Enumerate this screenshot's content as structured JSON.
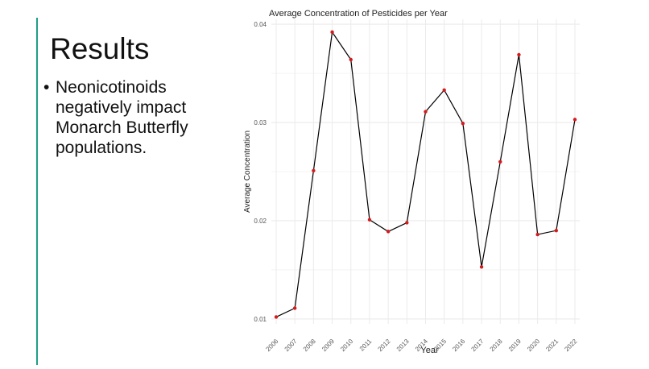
{
  "slide": {
    "title": "Results",
    "bullets": [
      "Neonicotinoids negatively impact Monarch Butterfly populations."
    ],
    "accent_color": "#1f9e89"
  },
  "chart_data": {
    "type": "line",
    "title": "Average Concentration of Pesticides per Year",
    "xlabel": "Year",
    "ylabel": "Average Concentration",
    "x": [
      "2006",
      "2007",
      "2008",
      "2009",
      "2010",
      "2011",
      "2012",
      "2013",
      "2014",
      "2015",
      "2016",
      "2017",
      "2018",
      "2019",
      "2020",
      "2021",
      "2022"
    ],
    "series": [
      {
        "values": [
          0.0102,
          0.0111,
          0.0251,
          0.0392,
          0.0364,
          0.0201,
          0.0189,
          0.0198,
          0.0311,
          0.0333,
          0.0299,
          0.0153,
          0.026,
          0.0369,
          0.0186,
          0.019,
          0.0303
        ],
        "line_color": "#000000",
        "point_color": "#d7191c"
      }
    ],
    "yticks": [
      0.01,
      0.02,
      0.03,
      0.04
    ],
    "ytick_labels": [
      "0.01",
      "0.02",
      "0.03",
      "0.04"
    ],
    "ylim": [
      0.0095,
      0.0405
    ],
    "grid": true,
    "grid_color": "#ebebeb"
  }
}
